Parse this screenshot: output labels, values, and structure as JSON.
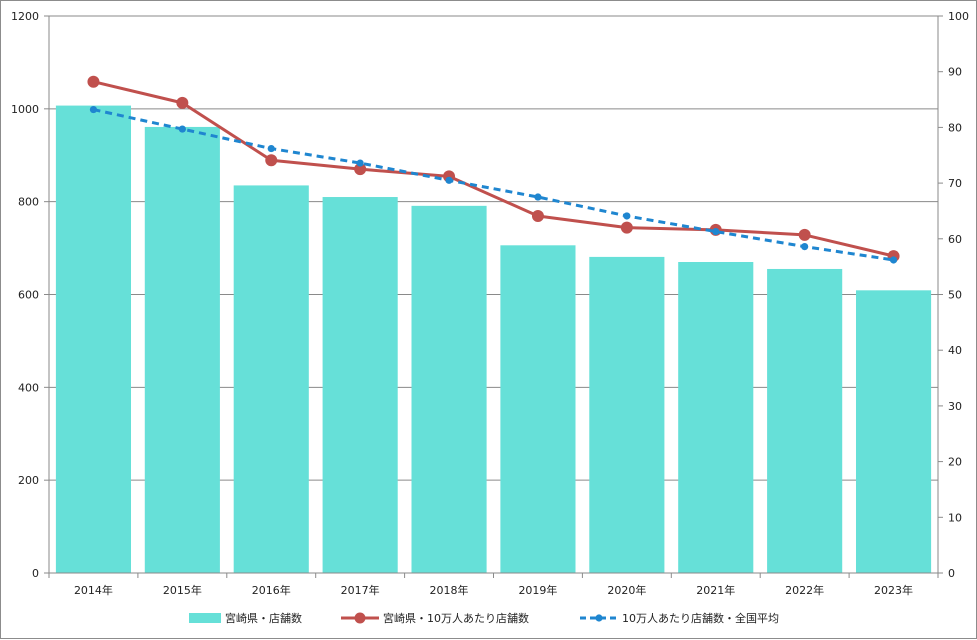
{
  "chart_data": {
    "type": "bar",
    "categories": [
      "2014年",
      "2015年",
      "2016年",
      "2017年",
      "2018年",
      "2019年",
      "2020年",
      "2021年",
      "2022年",
      "2023年"
    ],
    "series": [
      {
        "name": "宮崎県・店舗数",
        "type": "bar",
        "axis": "left",
        "color": "#66E0D8",
        "values": [
          1007,
          961,
          835,
          810,
          791,
          706,
          681,
          670,
          655,
          609
        ]
      },
      {
        "name": "宮崎県・10万人あたり店舗数",
        "type": "line",
        "axis": "right",
        "color": "#C0504D",
        "values": [
          88.2,
          84.4,
          74.1,
          72.5,
          71.2,
          64.1,
          62.0,
          61.6,
          60.7,
          56.9
        ]
      },
      {
        "name": "10万人あたり店舗数・全国平均",
        "type": "line-dashed",
        "axis": "right",
        "color": "#1F86D0",
        "values": [
          83.2,
          79.7,
          76.2,
          73.6,
          70.5,
          67.5,
          64.1,
          61.3,
          58.6,
          56.2
        ]
      }
    ],
    "y_left": {
      "min": 0,
      "max": 1200,
      "ticks": [
        0,
        200,
        400,
        600,
        800,
        1000,
        1200
      ]
    },
    "y_right": {
      "min": 0,
      "max": 100,
      "ticks": [
        0,
        10,
        20,
        30,
        40,
        50,
        60,
        70,
        80,
        90,
        100
      ]
    },
    "gridlines": [
      200,
      400,
      600,
      800,
      1000
    ],
    "legend_position": "bottom"
  }
}
